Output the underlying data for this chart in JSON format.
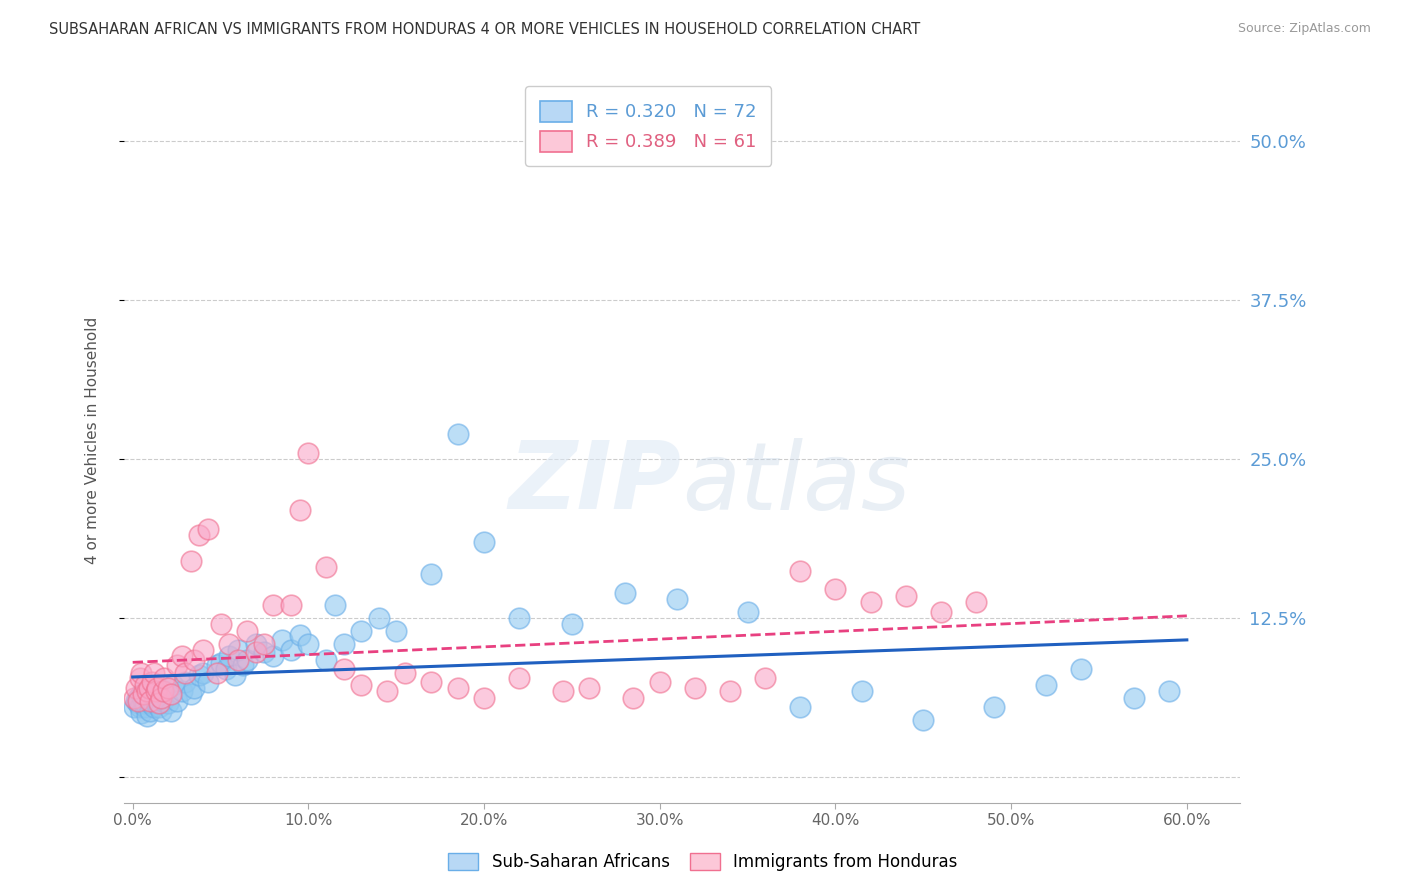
{
  "title": "SUBSAHARAN AFRICAN VS IMMIGRANTS FROM HONDURAS 4 OR MORE VEHICLES IN HOUSEHOLD CORRELATION CHART",
  "source": "Source: ZipAtlas.com",
  "xlabel_ticks": [
    "0.0%",
    "10.0%",
    "20.0%",
    "30.0%",
    "40.0%",
    "50.0%",
    "60.0%"
  ],
  "xlabel_vals": [
    0.0,
    0.1,
    0.2,
    0.3,
    0.4,
    0.5,
    0.6
  ],
  "ylabel": "4 or more Vehicles in Household",
  "ylim": [
    -0.02,
    0.55
  ],
  "xlim": [
    -0.005,
    0.63
  ],
  "right_ytick_labels": [
    "50.0%",
    "37.5%",
    "25.0%",
    "12.5%"
  ],
  "right_ytick_vals": [
    0.5,
    0.375,
    0.25,
    0.125
  ],
  "series1_label": "Sub-Saharan Africans",
  "series2_label": "Immigrants from Honduras",
  "series1_color": "#90c8f0",
  "series2_color": "#f9a8c9",
  "series1_edge_color": "#6aaee8",
  "series2_edge_color": "#f07090",
  "series1_line_color": "#2060c0",
  "series2_line_color": "#e84080",
  "background_color": "#ffffff",
  "grid_color": "#cccccc",
  "title_color": "#333333",
  "right_tick_color": "#5b9bd5",
  "watermark_text": "ZIPatlas",
  "series1_R": "0.320",
  "series1_N": "72",
  "series2_R": "0.389",
  "series2_N": "61",
  "series1_x": [
    0.001,
    0.002,
    0.003,
    0.003,
    0.004,
    0.005,
    0.005,
    0.006,
    0.007,
    0.007,
    0.008,
    0.008,
    0.009,
    0.01,
    0.01,
    0.011,
    0.012,
    0.012,
    0.013,
    0.014,
    0.015,
    0.016,
    0.017,
    0.018,
    0.02,
    0.022,
    0.023,
    0.025,
    0.028,
    0.03,
    0.033,
    0.035,
    0.038,
    0.04,
    0.043,
    0.048,
    0.05,
    0.053,
    0.055,
    0.058,
    0.06,
    0.063,
    0.065,
    0.07,
    0.075,
    0.08,
    0.085,
    0.09,
    0.095,
    0.1,
    0.11,
    0.115,
    0.12,
    0.13,
    0.14,
    0.15,
    0.17,
    0.185,
    0.2,
    0.22,
    0.25,
    0.28,
    0.31,
    0.35,
    0.38,
    0.415,
    0.45,
    0.49,
    0.52,
    0.54,
    0.57,
    0.59
  ],
  "series1_y": [
    0.055,
    0.06,
    0.058,
    0.062,
    0.055,
    0.065,
    0.05,
    0.06,
    0.055,
    0.058,
    0.062,
    0.048,
    0.065,
    0.052,
    0.058,
    0.06,
    0.055,
    0.062,
    0.058,
    0.065,
    0.055,
    0.052,
    0.06,
    0.068,
    0.058,
    0.052,
    0.072,
    0.06,
    0.068,
    0.075,
    0.065,
    0.07,
    0.08,
    0.082,
    0.075,
    0.088,
    0.09,
    0.085,
    0.095,
    0.08,
    0.1,
    0.088,
    0.092,
    0.105,
    0.098,
    0.095,
    0.108,
    0.1,
    0.112,
    0.105,
    0.092,
    0.135,
    0.105,
    0.115,
    0.125,
    0.115,
    0.16,
    0.27,
    0.185,
    0.125,
    0.12,
    0.145,
    0.14,
    0.13,
    0.055,
    0.068,
    0.045,
    0.055,
    0.072,
    0.085,
    0.062,
    0.068
  ],
  "series2_x": [
    0.001,
    0.002,
    0.003,
    0.004,
    0.005,
    0.006,
    0.007,
    0.008,
    0.009,
    0.01,
    0.011,
    0.012,
    0.013,
    0.014,
    0.015,
    0.016,
    0.017,
    0.018,
    0.02,
    0.022,
    0.025,
    0.028,
    0.03,
    0.033,
    0.035,
    0.038,
    0.04,
    0.043,
    0.048,
    0.05,
    0.055,
    0.06,
    0.065,
    0.07,
    0.075,
    0.08,
    0.09,
    0.095,
    0.1,
    0.11,
    0.12,
    0.13,
    0.145,
    0.155,
    0.17,
    0.185,
    0.2,
    0.22,
    0.245,
    0.26,
    0.285,
    0.3,
    0.32,
    0.34,
    0.36,
    0.38,
    0.4,
    0.42,
    0.44,
    0.46,
    0.48
  ],
  "series2_y": [
    0.062,
    0.07,
    0.06,
    0.078,
    0.082,
    0.065,
    0.072,
    0.068,
    0.07,
    0.06,
    0.075,
    0.082,
    0.068,
    0.07,
    0.058,
    0.062,
    0.068,
    0.078,
    0.07,
    0.065,
    0.088,
    0.095,
    0.082,
    0.17,
    0.092,
    0.19,
    0.1,
    0.195,
    0.082,
    0.12,
    0.105,
    0.092,
    0.115,
    0.098,
    0.105,
    0.135,
    0.135,
    0.21,
    0.255,
    0.165,
    0.085,
    0.072,
    0.068,
    0.082,
    0.075,
    0.07,
    0.062,
    0.078,
    0.068,
    0.07,
    0.062,
    0.075,
    0.07,
    0.068,
    0.078,
    0.162,
    0.148,
    0.138,
    0.142,
    0.13,
    0.138
  ]
}
